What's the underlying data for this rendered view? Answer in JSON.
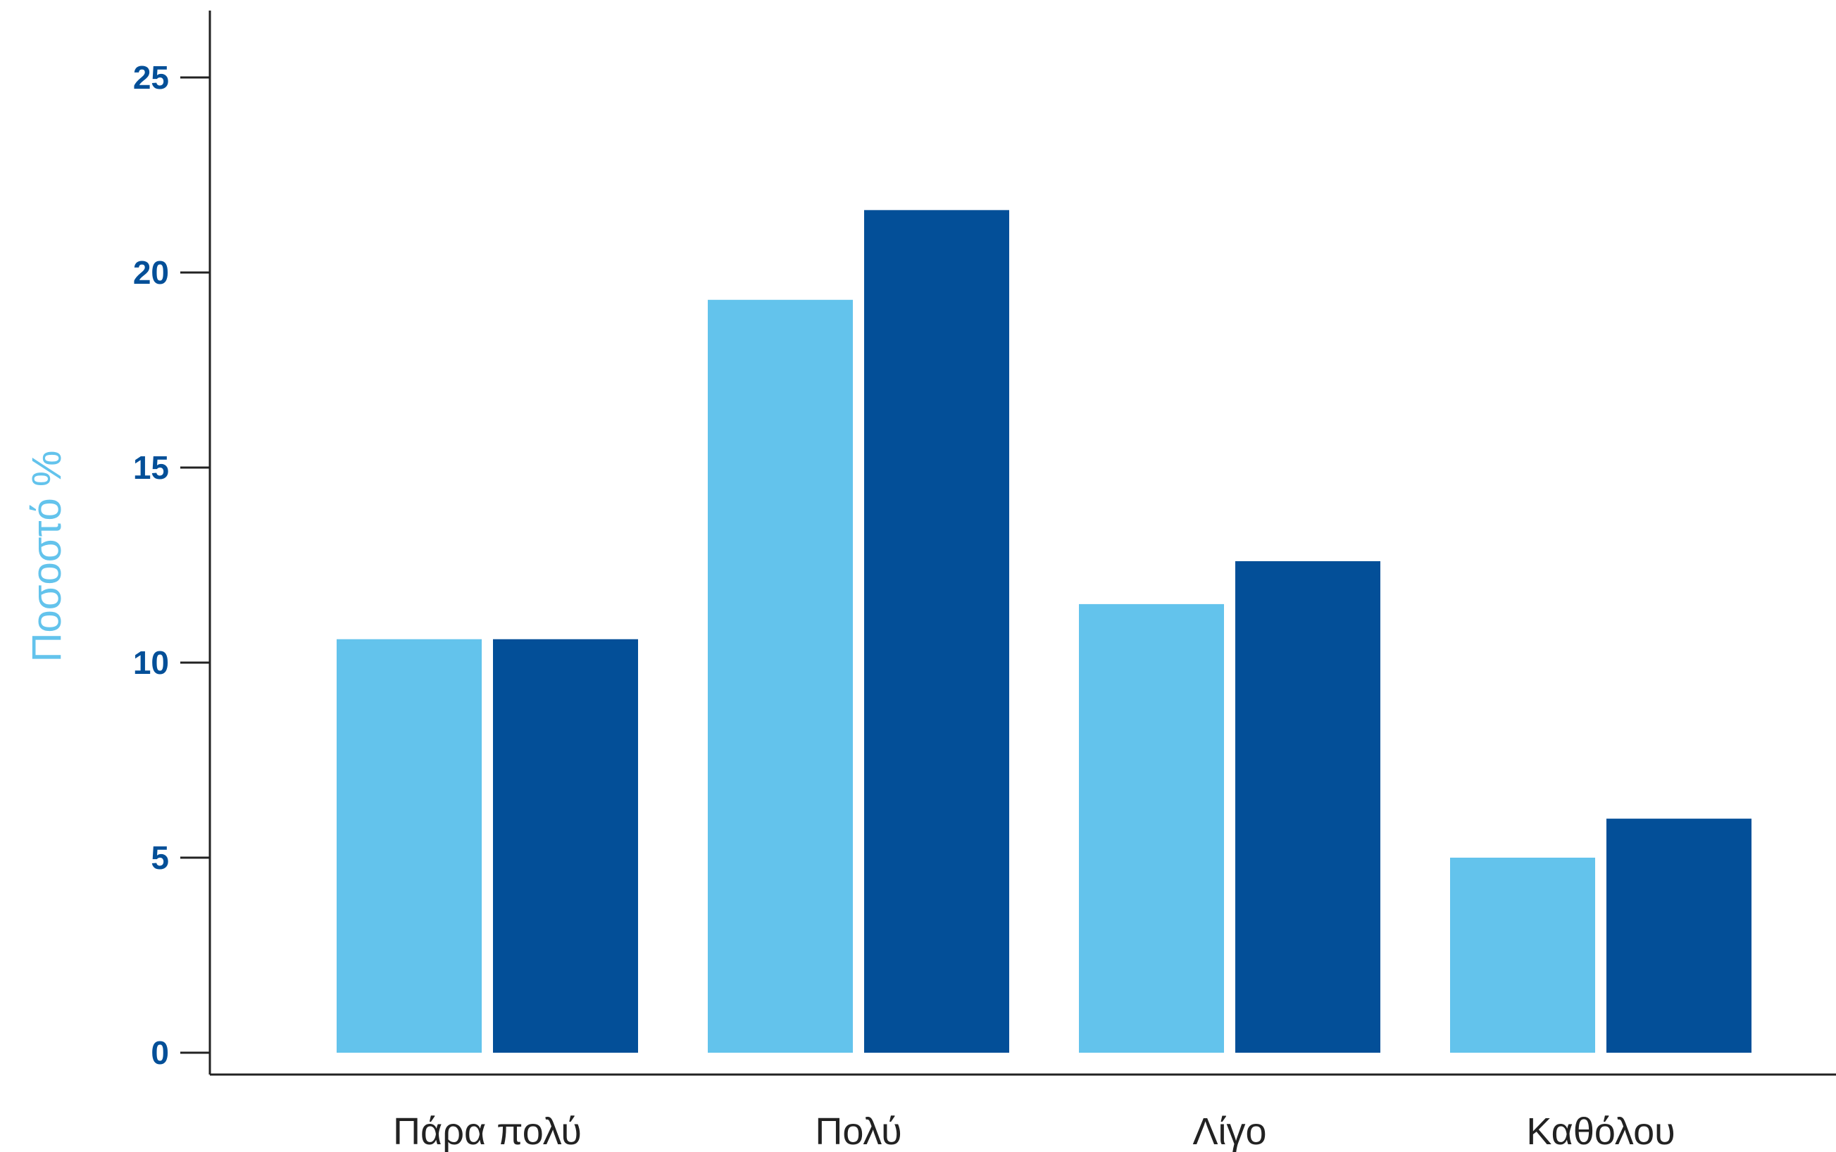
{
  "chart_data": {
    "type": "bar",
    "categories": [
      "Πάρα πολύ",
      "Πολύ",
      "Λίγο",
      "Καθόλου"
    ],
    "series": [
      {
        "color": "#63c3ec",
        "values": [
          10.6,
          19.3,
          11.5,
          5.0
        ]
      },
      {
        "color": "#034f98",
        "values": [
          10.6,
          21.6,
          12.6,
          6.0
        ]
      }
    ],
    "ylabel": "Ποσοστό %",
    "ylim": [
      0,
      25
    ],
    "yticks": [
      0,
      5,
      10,
      15,
      20,
      25
    ],
    "grid": false,
    "colors": {
      "tick_label": "#034f98",
      "ylabel": "#63c3ec",
      "category_label": "#222222",
      "axis": "#222222"
    }
  }
}
